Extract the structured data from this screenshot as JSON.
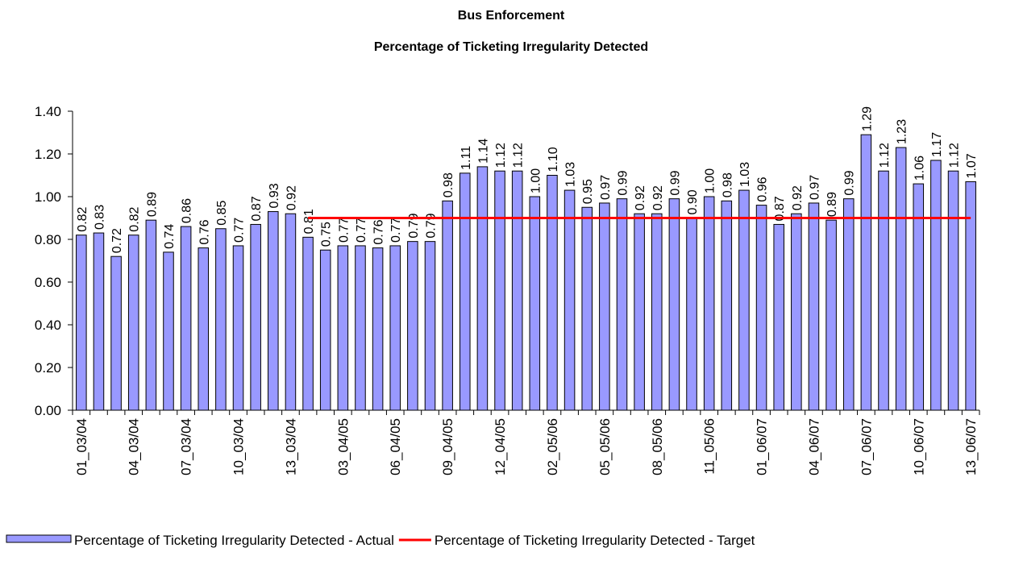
{
  "chart_data": {
    "type": "bar",
    "title": "Bus Enforcement",
    "subtitle": "Percentage of Ticketing Irregularity Detected",
    "categories": [
      "01_03/04",
      null,
      null,
      "04_03/04",
      null,
      null,
      "07_03/04",
      null,
      null,
      "10_03/04",
      null,
      null,
      "13_03/04",
      null,
      null,
      "03_04/05",
      null,
      null,
      "06_04/05",
      null,
      null,
      "09_04/05",
      null,
      null,
      "12_04/05",
      null,
      null,
      "02_05/06",
      null,
      null,
      "05_05/06",
      null,
      null,
      "08_05/06",
      null,
      null,
      "11_05/06",
      null,
      null,
      "01_06/07",
      null,
      null,
      "04_06/07",
      null,
      null,
      "07_06/07",
      null,
      null,
      "10_06/07",
      null,
      null,
      "13_06/07"
    ],
    "series": [
      {
        "name": "Percentage of Ticketing Irregularity Detected - Actual",
        "type": "bar",
        "color": "#9999ff",
        "values": [
          0.82,
          0.83,
          0.72,
          0.82,
          0.89,
          0.74,
          0.86,
          0.76,
          0.85,
          0.77,
          0.87,
          0.93,
          0.92,
          0.81,
          0.75,
          0.77,
          0.77,
          0.76,
          0.77,
          0.79,
          0.79,
          0.98,
          1.11,
          1.14,
          1.12,
          1.12,
          1.0,
          1.1,
          1.03,
          0.95,
          0.97,
          0.99,
          0.92,
          0.92,
          0.99,
          0.9,
          1.0,
          0.98,
          1.03,
          0.96,
          0.87,
          0.92,
          0.97,
          0.89,
          0.99,
          1.29,
          1.12,
          1.23,
          1.06,
          1.17,
          1.12,
          1.07
        ],
        "value_labels": [
          "0.82",
          "0.83",
          "0.72",
          "0.82",
          "0.89",
          "0.74",
          "0.86",
          "0.76",
          "0.85",
          "0.77",
          "0.87",
          "0.93",
          "0.92",
          "0.81",
          "0.75",
          "0.77",
          "0.77",
          "0.76",
          "0.77",
          "0.79",
          "0.79",
          "0.98",
          "1.11",
          "1.14",
          "1.12",
          "1.12",
          "1.00",
          "1.10",
          "1.03",
          "0.95",
          "0.97",
          "0.99",
          "0.92",
          "0.92",
          "0.99",
          "0.90",
          "1.00",
          "0.98",
          "1.03",
          "0.96",
          "0.87",
          "0.92",
          "0.97",
          "0.89",
          "0.99",
          "1.29",
          "1.12",
          "1.23",
          "1.06",
          "1.17",
          "1.12",
          "1.07"
        ]
      },
      {
        "name": "Percentage of Ticketing Irregularity Detected - Target",
        "type": "line",
        "color": "#ff0000",
        "values": [
          null,
          null,
          null,
          null,
          null,
          null,
          null,
          null,
          null,
          null,
          null,
          null,
          null,
          0.9,
          0.9,
          0.9,
          0.9,
          0.9,
          0.9,
          0.9,
          0.9,
          0.9,
          0.9,
          0.9,
          0.9,
          0.9,
          0.9,
          0.9,
          0.9,
          0.9,
          0.9,
          0.9,
          0.9,
          0.9,
          0.9,
          0.9,
          0.9,
          0.9,
          0.9,
          0.9,
          0.9,
          0.9,
          0.9,
          0.9,
          0.9,
          0.9,
          0.9,
          0.9,
          0.9,
          0.9,
          0.9,
          0.9
        ]
      }
    ],
    "ylim": [
      0,
      1.4
    ],
    "yticks": [
      {
        "value": 0,
        "label": "0.00"
      },
      {
        "value": 0.2,
        "label": "0.20"
      },
      {
        "value": 0.4,
        "label": "0.40"
      },
      {
        "value": 0.6,
        "label": "0.60"
      },
      {
        "value": 0.8,
        "label": "0.80"
      },
      {
        "value": 1,
        "label": "1.00"
      },
      {
        "value": 1.2,
        "label": "1.20"
      },
      {
        "value": 1.4,
        "label": "1.40"
      }
    ],
    "grid": false,
    "legend": "bottom"
  }
}
